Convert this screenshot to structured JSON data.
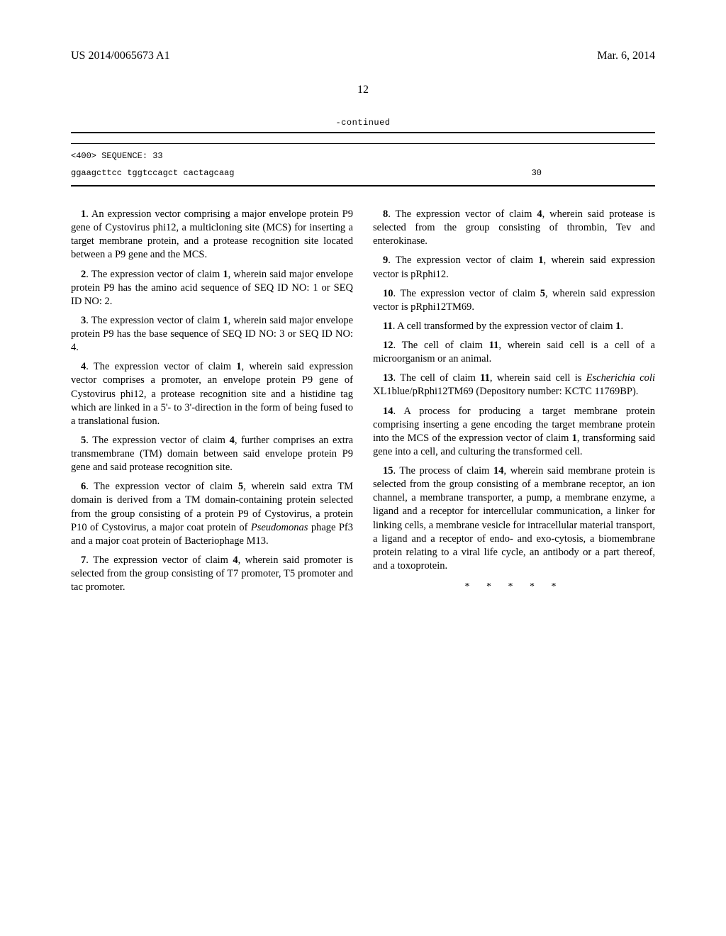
{
  "header": {
    "pub_number": "US 2014/0065673 A1",
    "date": "Mar. 6, 2014"
  },
  "page_number": "12",
  "sequence": {
    "continued": "-continued",
    "header": "<400> SEQUENCE: 33",
    "data": "ggaagcttcc tggtccagct cactagcaag",
    "length": "30"
  },
  "claims_left": [
    {
      "n": "1",
      "text": ". An expression vector comprising a major envelope protein P9 gene of Cystovirus phi12, a multicloning site (MCS) for inserting a target membrane protein, and a protease recognition site located between a P9 gene and the MCS."
    },
    {
      "n": "2",
      "text": ". The expression vector of claim ",
      "ref": "1",
      "tail": ", wherein said major envelope protein P9 has the amino acid sequence of SEQ ID NO: 1 or SEQ ID NO: 2."
    },
    {
      "n": "3",
      "text": ". The expression vector of claim ",
      "ref": "1",
      "tail": ", wherein said major envelope protein P9 has the base sequence of SEQ ID NO: 3 or SEQ ID NO: 4."
    },
    {
      "n": "4",
      "text": ". The expression vector of claim ",
      "ref": "1",
      "tail": ", wherein said expression vector comprises a promoter, an envelope protein P9 gene of Cystovirus phi12, a protease recognition site and a histidine tag which are linked in a 5'- to 3'-direction in the form of being fused to a translational fusion."
    },
    {
      "n": "5",
      "text": ". The expression vector of claim ",
      "ref": "4",
      "tail": ", further comprises an extra transmembrane (TM) domain between said envelope protein P9 gene and said protease recognition site."
    },
    {
      "n": "6",
      "text": ". The expression vector of claim ",
      "ref": "5",
      "tail": ", wherein said extra TM domain is derived from a TM domain-containing protein selected from the group consisting of a protein P9 of Cystovirus, a protein P10 of Cystovirus, a major coat protein of ",
      "italic": "Pseudomonas",
      "tail2": " phage Pf3 and a major coat protein of Bacteriophage M13."
    },
    {
      "n": "7",
      "text": ". The expression vector of claim ",
      "ref": "4",
      "tail": ", wherein said promoter is selected from the group consisting of T7 promoter, T5 promoter and tac promoter."
    }
  ],
  "claims_right": [
    {
      "n": "8",
      "text": ". The expression vector of claim ",
      "ref": "4",
      "tail": ", wherein said protease is selected from the group consisting of thrombin, Tev and enterokinase."
    },
    {
      "n": "9",
      "text": ". The expression vector of claim ",
      "ref": "1",
      "tail": ", wherein said expression vector is pRphi12."
    },
    {
      "n": "10",
      "text": ". The expression vector of claim ",
      "ref": "5",
      "tail": ", wherein said expression vector is pRphi12TM69."
    },
    {
      "n": "11",
      "text": ". A cell transformed by the expression vector of claim ",
      "ref": "1",
      "tail": "."
    },
    {
      "n": "12",
      "text": ". The cell of claim ",
      "ref": "11",
      "tail": ", wherein said cell is a cell of a microorganism or an animal."
    },
    {
      "n": "13",
      "text": ". The cell of claim ",
      "ref": "11",
      "tail": ", wherein said cell is ",
      "italic": "Escherichia coli",
      "tail2": " XL1blue/pRphi12TM69 (Depository number: KCTC 11769BP)."
    },
    {
      "n": "14",
      "text": ". A process for producing a target membrane protein comprising inserting a gene encoding the target membrane protein into the MCS of the expression vector of claim ",
      "ref": "1",
      "tail": ", transforming said gene into a cell, and culturing the transformed cell."
    },
    {
      "n": "15",
      "text": ". The process of claim ",
      "ref": "14",
      "tail": ", wherein said membrane protein is selected from the group consisting of a membrane receptor, an ion channel, a membrane transporter, a pump, a membrane enzyme, a ligand and a receptor for intercellular communication, a linker for linking cells, a membrane vesicle for intracellular material transport, a ligand and a receptor of endo- and exo-cytosis, a biomembrane protein relating to a viral life cycle, an antibody or a part thereof, and a toxoprotein."
    }
  ],
  "endmark": "* * * * *"
}
